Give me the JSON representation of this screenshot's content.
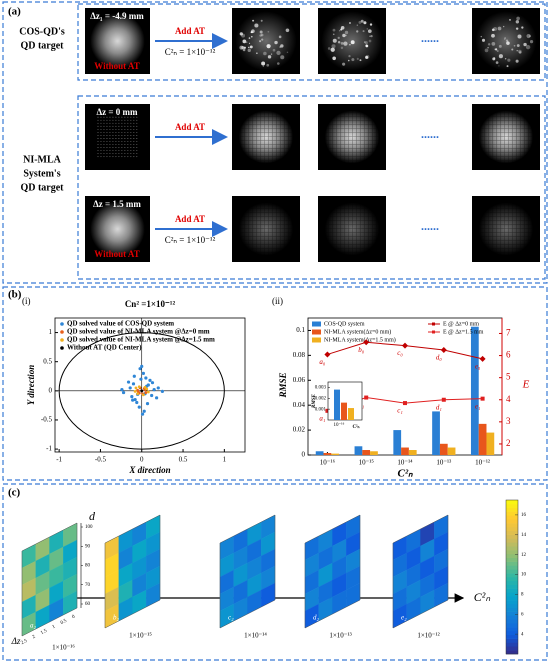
{
  "panel_a": {
    "label": "(a)",
    "groups": [
      [
        "COS-QD's",
        "QD target"
      ],
      [
        "NI-MLA",
        "System's",
        "QD target"
      ]
    ],
    "rows": [
      {
        "dz": "Δz₁ = -4.9 mm",
        "without": "Without AT",
        "add": "Add  AT",
        "cn": "C²ₙ = 1×10⁻¹²"
      },
      {
        "dz": "Δz = 0 mm",
        "add": "Add  AT"
      },
      {
        "dz": "Δz = 1.5 mm",
        "without": "Without  AT",
        "add": "Add  AT",
        "cn": "C²ₙ = 1×10⁻¹²"
      }
    ],
    "ellipsis": "......"
  },
  "panel_b": {
    "label": "(b)",
    "sub_labels": [
      "(i)",
      "(ii)"
    ]
  },
  "chart_data": [
    {
      "type": "scatter",
      "title": "Cn² =1×10⁻¹²",
      "xlabel": "X direction",
      "ylabel": "Y direction",
      "xlim": [
        -1.05,
        1.25
      ],
      "ylim": [
        -1.05,
        1.25
      ],
      "xticks": [
        -1,
        -0.5,
        0,
        0.5,
        1
      ],
      "yticks": [
        -1,
        -0.5,
        0,
        0.5,
        1
      ],
      "series": [
        {
          "name": "QD solved value of COS-QD system",
          "color": "#2f86d6",
          "x": [
            0.02,
            -0.03,
            0.05,
            -0.06,
            0.08,
            -0.1,
            0.12,
            -0.14,
            0.15,
            -0.12,
            0.1,
            -0.08,
            0.03,
            -0.02,
            0.2,
            -0.22,
            0.18,
            -0.16,
            0.06,
            -0.05,
            0.25,
            -0.24,
            0.0,
            0.01,
            -0.01,
            0.13,
            -0.11,
            0.07,
            -0.09,
            0.04
          ],
          "y": [
            0.3,
            -0.28,
            0.22,
            -0.2,
            0.1,
            0.12,
            -0.08,
            0.05,
            0.02,
            -0.1,
            0.18,
            -0.15,
            -0.35,
            0.38,
            0.05,
            -0.03,
            -0.12,
            0.15,
            0.08,
            -0.06,
            -0.01,
            0.02,
            0.42,
            -0.4,
            0.2,
            0.14,
            -0.16,
            -0.22,
            0.25,
            -0.05
          ]
        },
        {
          "name": "QD solved value of NI-MLA system @Δz=0 mm",
          "color": "#e8601c",
          "x": [
            0.03,
            -0.04,
            0.05,
            -0.02,
            0.01,
            -0.05,
            0.04,
            -0.03
          ],
          "y": [
            0.04,
            -0.02,
            -0.03,
            0.05,
            -0.05,
            0.01,
            0.02,
            -0.04
          ]
        },
        {
          "name": "QD solved value of NI-MLA system @Δz=1.5 mm",
          "color": "#f2b01e",
          "x": [
            0.06,
            -0.07,
            0.02,
            -0.03,
            0.08,
            -0.05,
            0.04,
            -0.08
          ],
          "y": [
            0.03,
            0.05,
            -0.07,
            0.07,
            -0.02,
            -0.05,
            0.06,
            -0.01
          ]
        },
        {
          "name": "Without AT (QD Center)",
          "color": "#000000",
          "x": [
            0
          ],
          "y": [
            0
          ]
        }
      ]
    },
    {
      "type": "bar",
      "xlabel": "C²ₙ",
      "ylabel": "RMSE",
      "y2label": "E",
      "categories": [
        "10⁻¹⁶",
        "10⁻¹⁵",
        "10⁻¹⁴",
        "10⁻¹³",
        "10⁻¹²"
      ],
      "ylim": [
        0,
        0.11
      ],
      "yticks": [
        0,
        0.02,
        0.04,
        0.06,
        0.08,
        0.1
      ],
      "y2lim": [
        1.5,
        7.7
      ],
      "y2ticks": [
        2,
        3,
        4,
        5,
        6,
        7
      ],
      "series": [
        {
          "name": "COS-QD system",
          "color": "#2a7fd4",
          "values": [
            0.003,
            0.007,
            0.02,
            0.035,
            0.103
          ]
        },
        {
          "name": "NI-MLA system(Δz=0 mm)",
          "color": "#e8561c",
          "values": [
            0.0016,
            0.004,
            0.006,
            0.009,
            0.025
          ]
        },
        {
          "name": "NI-MLA system(Δz=1.5 mm)",
          "color": "#f0b020",
          "values": [
            0.0011,
            0.003,
            0.004,
            0.006,
            0.018
          ]
        },
        {
          "name": "E @ Δz=0 mm",
          "color": "#c00000",
          "type": "line",
          "axis": "y2",
          "marker": "diamond",
          "values": [
            6.05,
            6.6,
            6.45,
            6.25,
            5.85
          ],
          "point_labels": [
            "a₀",
            "b₀",
            "c₀",
            "d₀",
            "e₀"
          ]
        },
        {
          "name": "E @ Δz=1.5 mm",
          "color": "#e02020",
          "type": "line",
          "axis": "y2",
          "marker": "square",
          "values": [
            3.5,
            4.1,
            3.85,
            4.0,
            4.05
          ],
          "point_labels": [
            "a₁",
            "b₁",
            "c₁",
            "d₁",
            "e₁"
          ]
        }
      ],
      "inset": {
        "ylabel": "RMSE",
        "xlabel": "C²ₙ",
        "category": "10⁻¹⁶",
        "ylim": [
          0,
          0.0035
        ],
        "yticks": [
          0.001,
          0.002,
          0.003
        ],
        "values": [
          0.0028,
          0.0016,
          0.0011
        ]
      }
    }
  ],
  "panel_c": {
    "label": "(c)",
    "axis_d": "d",
    "axis_dz": "Δz",
    "axis_cn": "C²ₙ",
    "d_ticks": [
      60,
      70,
      80,
      90,
      100
    ],
    "dz_ticks": [
      0,
      0.5,
      1,
      1.5,
      2,
      2.5
    ],
    "clim": [
      2,
      17.5
    ],
    "cticks": [
      4,
      6,
      8,
      10,
      12,
      14,
      16
    ],
    "maps": [
      {
        "label": "1×10⁻¹⁶",
        "tag": "a₂",
        "values": [
          [
            10,
            12,
            9,
            11
          ],
          [
            12,
            9,
            11,
            8
          ],
          [
            13,
            11,
            10,
            9
          ],
          [
            9,
            12,
            8,
            10
          ],
          [
            11,
            8,
            6,
            9
          ]
        ]
      },
      {
        "label": "1×10⁻¹⁵",
        "tag": "b₂",
        "values": [
          [
            15,
            7,
            6,
            8
          ],
          [
            16,
            6,
            8,
            7
          ],
          [
            16,
            8,
            7,
            6
          ],
          [
            14,
            9,
            6,
            7
          ],
          [
            15,
            7,
            8,
            6
          ]
        ]
      },
      {
        "label": "1×10⁻¹⁴",
        "tag": "c₂",
        "values": [
          [
            6,
            5,
            7,
            6
          ],
          [
            7,
            6,
            5,
            7
          ],
          [
            5,
            7,
            6,
            5
          ],
          [
            6,
            5,
            7,
            6
          ],
          [
            7,
            6,
            5,
            4
          ]
        ]
      },
      {
        "label": "1×10⁻¹³",
        "tag": "d₂",
        "values": [
          [
            5,
            6,
            4,
            5
          ],
          [
            6,
            5,
            6,
            4
          ],
          [
            5,
            7,
            5,
            6
          ],
          [
            6,
            5,
            4,
            5
          ],
          [
            4,
            6,
            5,
            5
          ]
        ]
      },
      {
        "label": "1×10⁻¹²",
        "tag": "e₂",
        "values": [
          [
            4,
            5,
            3,
            5
          ],
          [
            5,
            4,
            6,
            4
          ],
          [
            6,
            5,
            4,
            5
          ],
          [
            5,
            6,
            5,
            4
          ],
          [
            4,
            5,
            6,
            5
          ]
        ]
      }
    ]
  }
}
